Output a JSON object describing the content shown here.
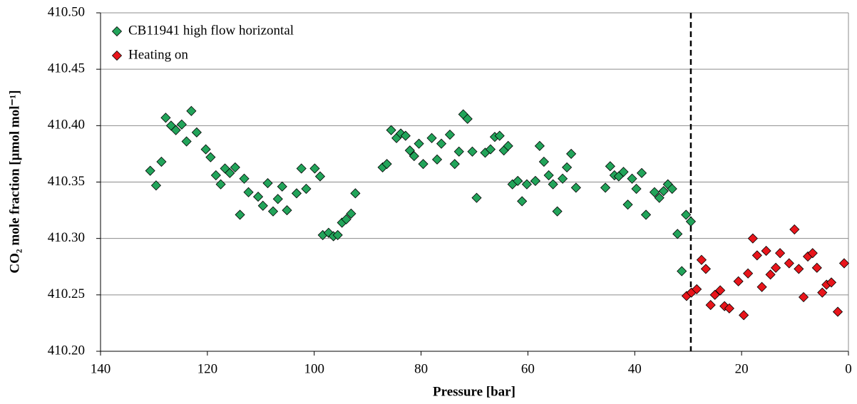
{
  "chart_data": {
    "type": "scatter",
    "x_label": "Pressure [bar]",
    "y_label": "CO₂ mole fraction [µmol mol⁻¹]",
    "xlim": [
      140,
      0
    ],
    "xticks": [
      140,
      120,
      100,
      80,
      60,
      40,
      20,
      0
    ],
    "ylim": [
      410.2,
      410.5
    ],
    "yticks": [
      {
        "value": 410.2,
        "label": "410.20"
      },
      410.25,
      {
        "value": 410.3,
        "label": "410.30"
      },
      410.35,
      {
        "value": 410.4,
        "label": "410.40"
      },
      410.45,
      {
        "value": 410.5,
        "label": "410.50"
      }
    ],
    "grid": true,
    "legend": "upper left",
    "vline": {
      "x": 29.5,
      "style": "dashed",
      "color": "#000000"
    },
    "series": [
      {
        "name": "CB11941 high flow horizontal",
        "color": "#22a45a",
        "x": [
          130.7,
          129.6,
          128.6,
          127.8,
          126.8,
          125.9,
          124.8,
          123.9,
          123.0,
          122.0,
          120.3,
          119.4,
          118.4,
          117.5,
          116.7,
          115.8,
          114.8,
          113.9,
          113.1,
          112.3,
          110.5,
          109.6,
          108.7,
          107.7,
          106.8,
          106.0,
          105.1,
          103.3,
          102.4,
          101.5,
          99.9,
          98.9,
          98.4,
          97.3,
          96.4,
          95.6,
          94.8,
          94.0,
          93.1,
          92.3,
          87.2,
          86.4,
          85.6,
          84.6,
          83.8,
          82.9,
          82.1,
          81.3,
          80.4,
          79.6,
          78.0,
          77.0,
          76.2,
          74.6,
          73.7,
          72.9,
          72.1,
          71.3,
          70.4,
          69.6,
          68.0,
          67.0,
          66.2,
          65.3,
          64.5,
          63.7,
          62.9,
          61.9,
          61.1,
          60.2,
          58.6,
          57.8,
          57.0,
          56.1,
          55.3,
          54.5,
          53.5,
          52.7,
          51.9,
          51.0,
          45.5,
          44.6,
          43.8,
          43.0,
          42.1,
          41.3,
          40.5,
          39.7,
          38.7,
          37.9,
          36.3,
          35.4,
          34.6,
          33.8,
          33.0,
          32.0,
          31.2,
          30.4,
          29.5
        ],
        "values": [
          410.36,
          410.347,
          410.368,
          410.407,
          410.4,
          410.396,
          410.401,
          410.386,
          410.413,
          410.394,
          410.379,
          410.372,
          410.356,
          410.348,
          410.362,
          410.358,
          410.363,
          410.321,
          410.353,
          410.341,
          410.337,
          410.329,
          410.349,
          410.324,
          410.335,
          410.346,
          410.325,
          410.34,
          410.362,
          410.344,
          410.362,
          410.355,
          410.303,
          410.305,
          410.302,
          410.303,
          410.314,
          410.317,
          410.322,
          410.34,
          410.363,
          410.366,
          410.396,
          410.389,
          410.393,
          410.391,
          410.378,
          410.373,
          410.384,
          410.366,
          410.389,
          410.37,
          410.384,
          410.392,
          410.366,
          410.377,
          410.41,
          410.406,
          410.377,
          410.336,
          410.376,
          410.379,
          410.39,
          410.391,
          410.378,
          410.382,
          410.348,
          410.351,
          410.333,
          410.348,
          410.351,
          410.382,
          410.368,
          410.356,
          410.348,
          410.324,
          410.353,
          410.363,
          410.375,
          410.345,
          410.345,
          410.364,
          410.356,
          410.355,
          410.359,
          410.33,
          410.353,
          410.344,
          410.358,
          410.321,
          410.341,
          410.336,
          410.342,
          410.348,
          410.344,
          410.304,
          410.271,
          410.321,
          410.315
        ]
      },
      {
        "name": "Heating on",
        "color": "#e8151b",
        "x": [
          30.3,
          29.4,
          28.4,
          27.5,
          26.7,
          25.8,
          25.0,
          24.0,
          23.2,
          22.3,
          20.6,
          19.6,
          18.8,
          17.9,
          17.1,
          16.2,
          15.4,
          14.6,
          13.6,
          12.8,
          11.1,
          10.1,
          9.3,
          8.4,
          7.6,
          6.7,
          5.9,
          4.9,
          4.1,
          3.2,
          2.0,
          0.8
        ],
        "values": [
          410.249,
          410.252,
          410.255,
          410.281,
          410.273,
          410.241,
          410.25,
          410.254,
          410.24,
          410.238,
          410.262,
          410.232,
          410.269,
          410.3,
          410.285,
          410.257,
          410.289,
          410.268,
          410.274,
          410.287,
          410.278,
          410.308,
          410.273,
          410.248,
          410.284,
          410.287,
          410.274,
          410.252,
          410.259,
          410.261,
          410.235,
          410.278
        ]
      }
    ]
  }
}
